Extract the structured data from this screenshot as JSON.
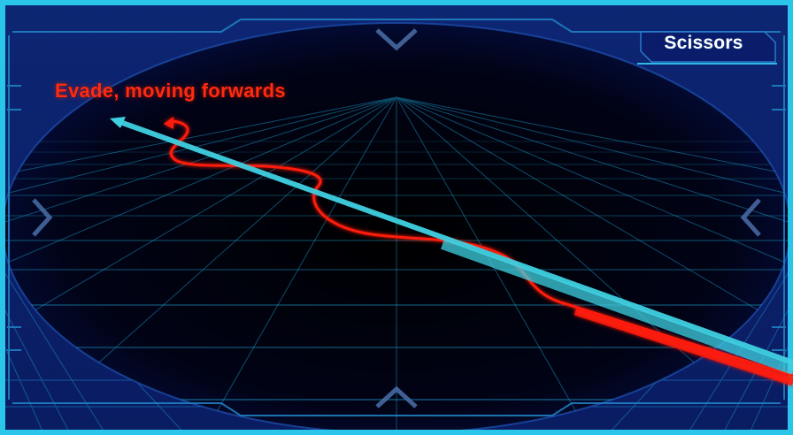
{
  "header": {
    "title": "Scissors"
  },
  "diagram": {
    "caption": "Evade, moving forwards"
  },
  "colors": {
    "frame": "#29c6ea",
    "background": "#0a1a5a",
    "grid": "#1fa8d8",
    "evade_path": "#ff1a0a",
    "direct_path": "#3fd0e0"
  },
  "icons": {
    "top": "chevron-down-icon",
    "bottom": "chevron-up-icon",
    "left": "chevron-left-icon",
    "right": "chevron-right-icon"
  }
}
